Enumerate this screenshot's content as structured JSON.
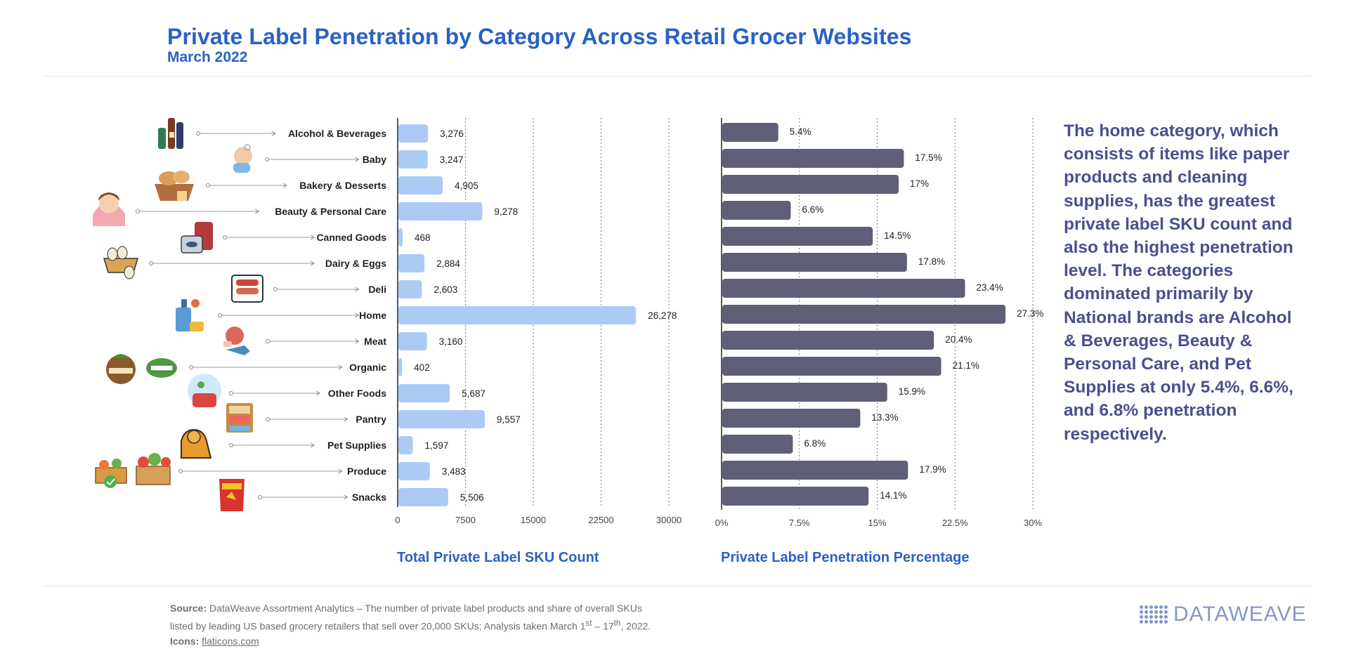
{
  "header": {
    "title": "Private Label Penetration by Category Across Retail Grocer Websites",
    "subtitle": "March 2022"
  },
  "note": "The home category, which consists of items like paper products and cleaning supplies, has the greatest private label SKU count and also the highest penetration level. The categories dominated primarily by National brands are Alcohol & Beverages, Beauty & Personal Care, and Pet Supplies at only 5.4%, 6.6%, and 6.8% penetration respectively.",
  "footer": {
    "source_label": "Source:",
    "source_text_1": "DataWeave Assortment Analytics – The number of private label products and share of overall SKUs",
    "source_text_2a": "listed by leading US based grocery retailers that sell over 20,000 SKUs; Analysis taken March 1",
    "sup1": "st",
    "source_text_2b": " – 17",
    "sup2": "th",
    "source_text_2c": ", 2022.",
    "icons_label": "Icons:",
    "icons_link": "flaticons.com"
  },
  "logo": {
    "text": "DATAWEAVE"
  },
  "colors": {
    "title": "#2a62c4",
    "sku_bar": "#abcbf5",
    "pct_bar": "#5f5f78",
    "note": "#4b4f8e"
  },
  "icons": [
    "bottles-icon",
    "baby-icon",
    "bread-basket-icon",
    "woman-makeup-icon",
    "canned-food-icon",
    "egg-basket-icon",
    "deli-sausage-icon",
    "cleaning-supplies-icon",
    "meat-fish-icon",
    "organic-badge-icon",
    "organic-leaf-icon",
    "cooking-pot-icon",
    "pantry-shelf-icon",
    "dog-icon",
    "vegetable-crate-icon",
    "fruit-crate-icon",
    "snack-bag-icon"
  ],
  "chart_data": [
    {
      "type": "bar",
      "orientation": "horizontal",
      "xlabel": "Total Private Label SKU Count",
      "categories": [
        "Alcohol & Beverages",
        "Baby",
        "Bakery & Desserts",
        "Beauty & Personal Care",
        "Canned Goods",
        "Dairy & Eggs",
        "Deli",
        "Home",
        "Meat",
        "Organic",
        "Other Foods",
        "Pantry",
        "Pet Supplies",
        "Produce",
        "Snacks"
      ],
      "values": [
        3276,
        3247,
        4905,
        9278,
        468,
        2884,
        2603,
        26278,
        3160,
        402,
        5687,
        9557,
        1597,
        3483,
        5506
      ],
      "value_labels": [
        "3,276",
        "3,247",
        "4,905",
        "9,278",
        "468",
        "2,884",
        "2,603",
        "26,278",
        "3,160",
        "402",
        "5,687",
        "9,557",
        "1,597",
        "3,483",
        "5,506"
      ],
      "xlim": [
        0,
        30000
      ],
      "ticks": [
        "0",
        "7500",
        "15000",
        "22500",
        "30000"
      ],
      "tick_values": [
        0,
        7500,
        15000,
        22500,
        30000
      ],
      "grid": true
    },
    {
      "type": "bar",
      "orientation": "horizontal",
      "xlabel": "Private Label Penetration Percentage",
      "categories": [
        "Alcohol & Beverages",
        "Baby",
        "Bakery & Desserts",
        "Beauty & Personal Care",
        "Canned Goods",
        "Dairy & Eggs",
        "Deli",
        "Home",
        "Meat",
        "Organic",
        "Other Foods",
        "Pantry",
        "Pet Supplies",
        "Produce",
        "Snacks"
      ],
      "values": [
        5.4,
        17.5,
        17,
        6.6,
        14.5,
        17.8,
        23.4,
        27.3,
        20.4,
        21.1,
        15.9,
        13.3,
        6.8,
        17.9,
        14.1
      ],
      "value_labels": [
        "5.4%",
        "17.5%",
        "17%",
        "6.6%",
        "14.5%",
        "17.8%",
        "23.4%",
        "27.3%",
        "20.4%",
        "21.1%",
        "15.9%",
        "13.3%",
        "6.8%",
        "17.9%",
        "14.1%"
      ],
      "xlim": [
        0,
        30
      ],
      "ticks": [
        "0%",
        "7.5%",
        "15%",
        "22.5%",
        "30%"
      ],
      "tick_values": [
        0,
        7.5,
        15,
        22.5,
        30
      ],
      "grid": true
    }
  ]
}
